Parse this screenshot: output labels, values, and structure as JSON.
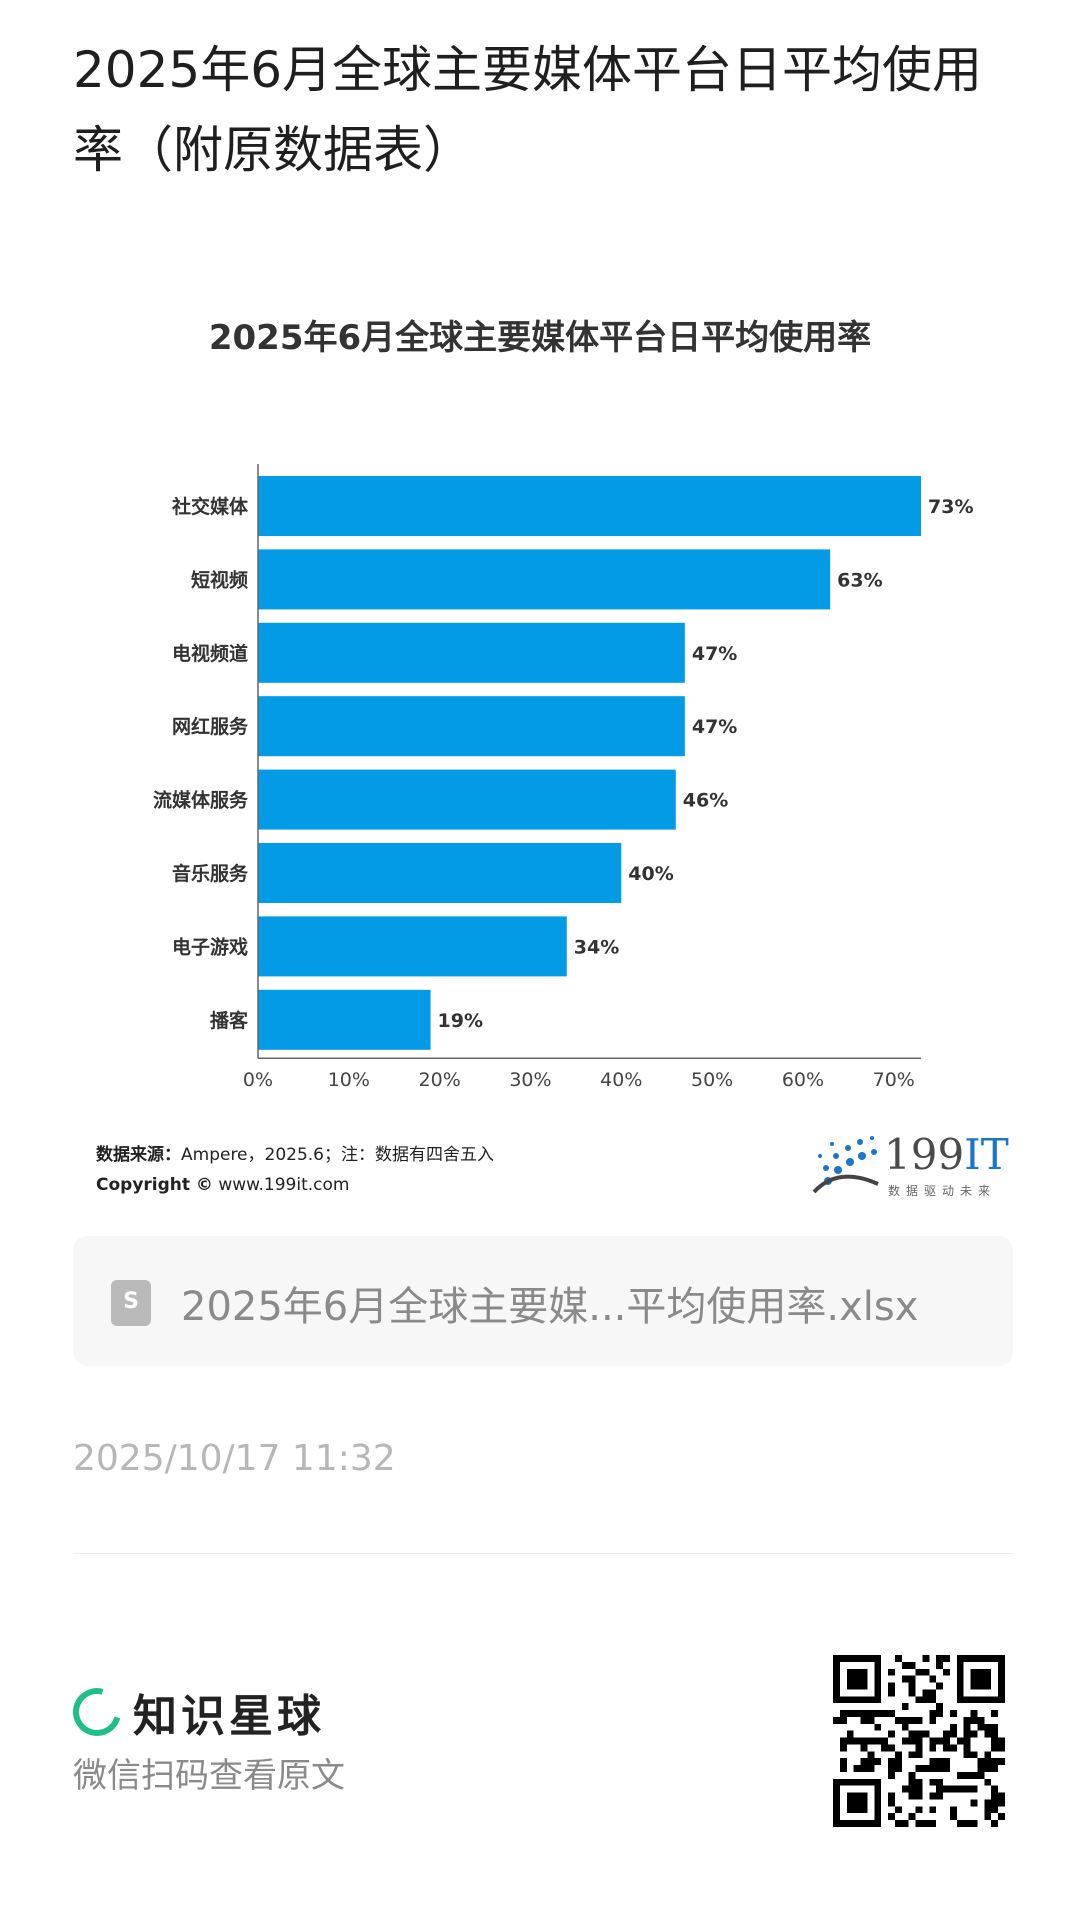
{
  "post": {
    "title": "2025年6月全球主要媒体平台日平均使用率（附原数据表）",
    "file_name": "2025年6月全球主要媒...平均使用率.xlsx",
    "file_icon": "S",
    "timestamp": "2025/10/17 11:32"
  },
  "chart_data": {
    "type": "bar",
    "orientation": "horizontal",
    "title": "2025年6月全球主要媒体平台日平均使用率",
    "categories": [
      "社交媒体",
      "短视频",
      "电视频道",
      "网红服务",
      "流媒体服务",
      "音乐服务",
      "电子游戏",
      "播客"
    ],
    "values": [
      73,
      63,
      47,
      47,
      46,
      40,
      34,
      19
    ],
    "value_labels": [
      "73%",
      "63%",
      "47%",
      "47%",
      "46%",
      "40%",
      "34%",
      "19%"
    ],
    "xticks": [
      "0%",
      "10%",
      "20%",
      "30%",
      "40%",
      "50%",
      "60%",
      "70%"
    ],
    "xlim": [
      0,
      73
    ],
    "bar_color": "#039be5",
    "grid": false
  },
  "source": {
    "label": "数据来源：",
    "text": "Ampere，2025.6；注：数据有四舍五入",
    "copyright_label": "Copyright ©",
    "copyright_text": "www.199it.com"
  },
  "brand": {
    "num": "199",
    "it": "IT",
    "subtitle": "数据驱动未来",
    "accent": "#1976c9"
  },
  "footer": {
    "planet_name": "知识星球",
    "scan_hint": "微信扫码查看原文",
    "accent": "#1fbf8b"
  }
}
